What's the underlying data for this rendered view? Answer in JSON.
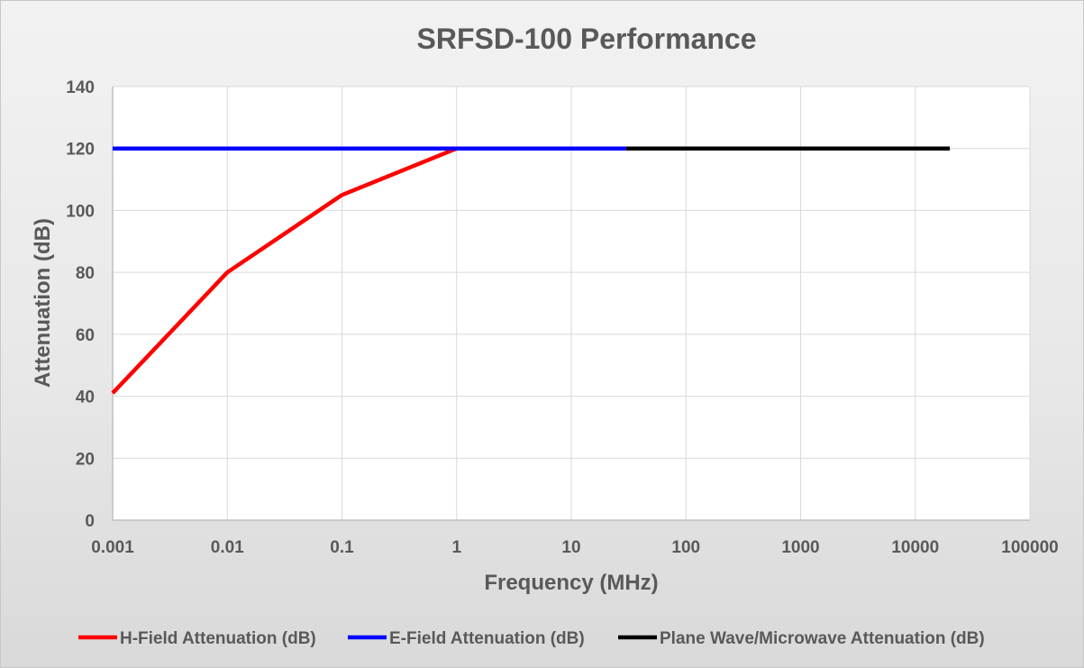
{
  "chart_data": {
    "type": "line",
    "title": "SRFSD-100 Performance",
    "xlabel": "Frequency (MHz)",
    "ylabel": "Attenuation (dB)",
    "x_scale": "log",
    "xlim": [
      0.001,
      100000
    ],
    "ylim": [
      0,
      140
    ],
    "x_ticks": [
      "0.001",
      "0.01",
      "0.1",
      "1",
      "10",
      "100",
      "1000",
      "10000",
      "100000"
    ],
    "y_ticks": [
      "0",
      "20",
      "40",
      "60",
      "80",
      "100",
      "120",
      "140"
    ],
    "grid": true,
    "legend_position": "bottom",
    "series": [
      {
        "name": "H-Field Attenuation (dB)",
        "color": "#ff0000",
        "x": [
          0.001,
          0.01,
          0.1,
          1
        ],
        "y": [
          41,
          80,
          105,
          120
        ]
      },
      {
        "name": "E-Field Attenuation (dB)",
        "color": "#0000ff",
        "x": [
          0.001,
          30
        ],
        "y": [
          120,
          120
        ]
      },
      {
        "name": "Plane Wave/Microwave Attenuation (dB)",
        "color": "#000000",
        "x": [
          30,
          20000
        ],
        "y": [
          120,
          120
        ]
      }
    ]
  }
}
